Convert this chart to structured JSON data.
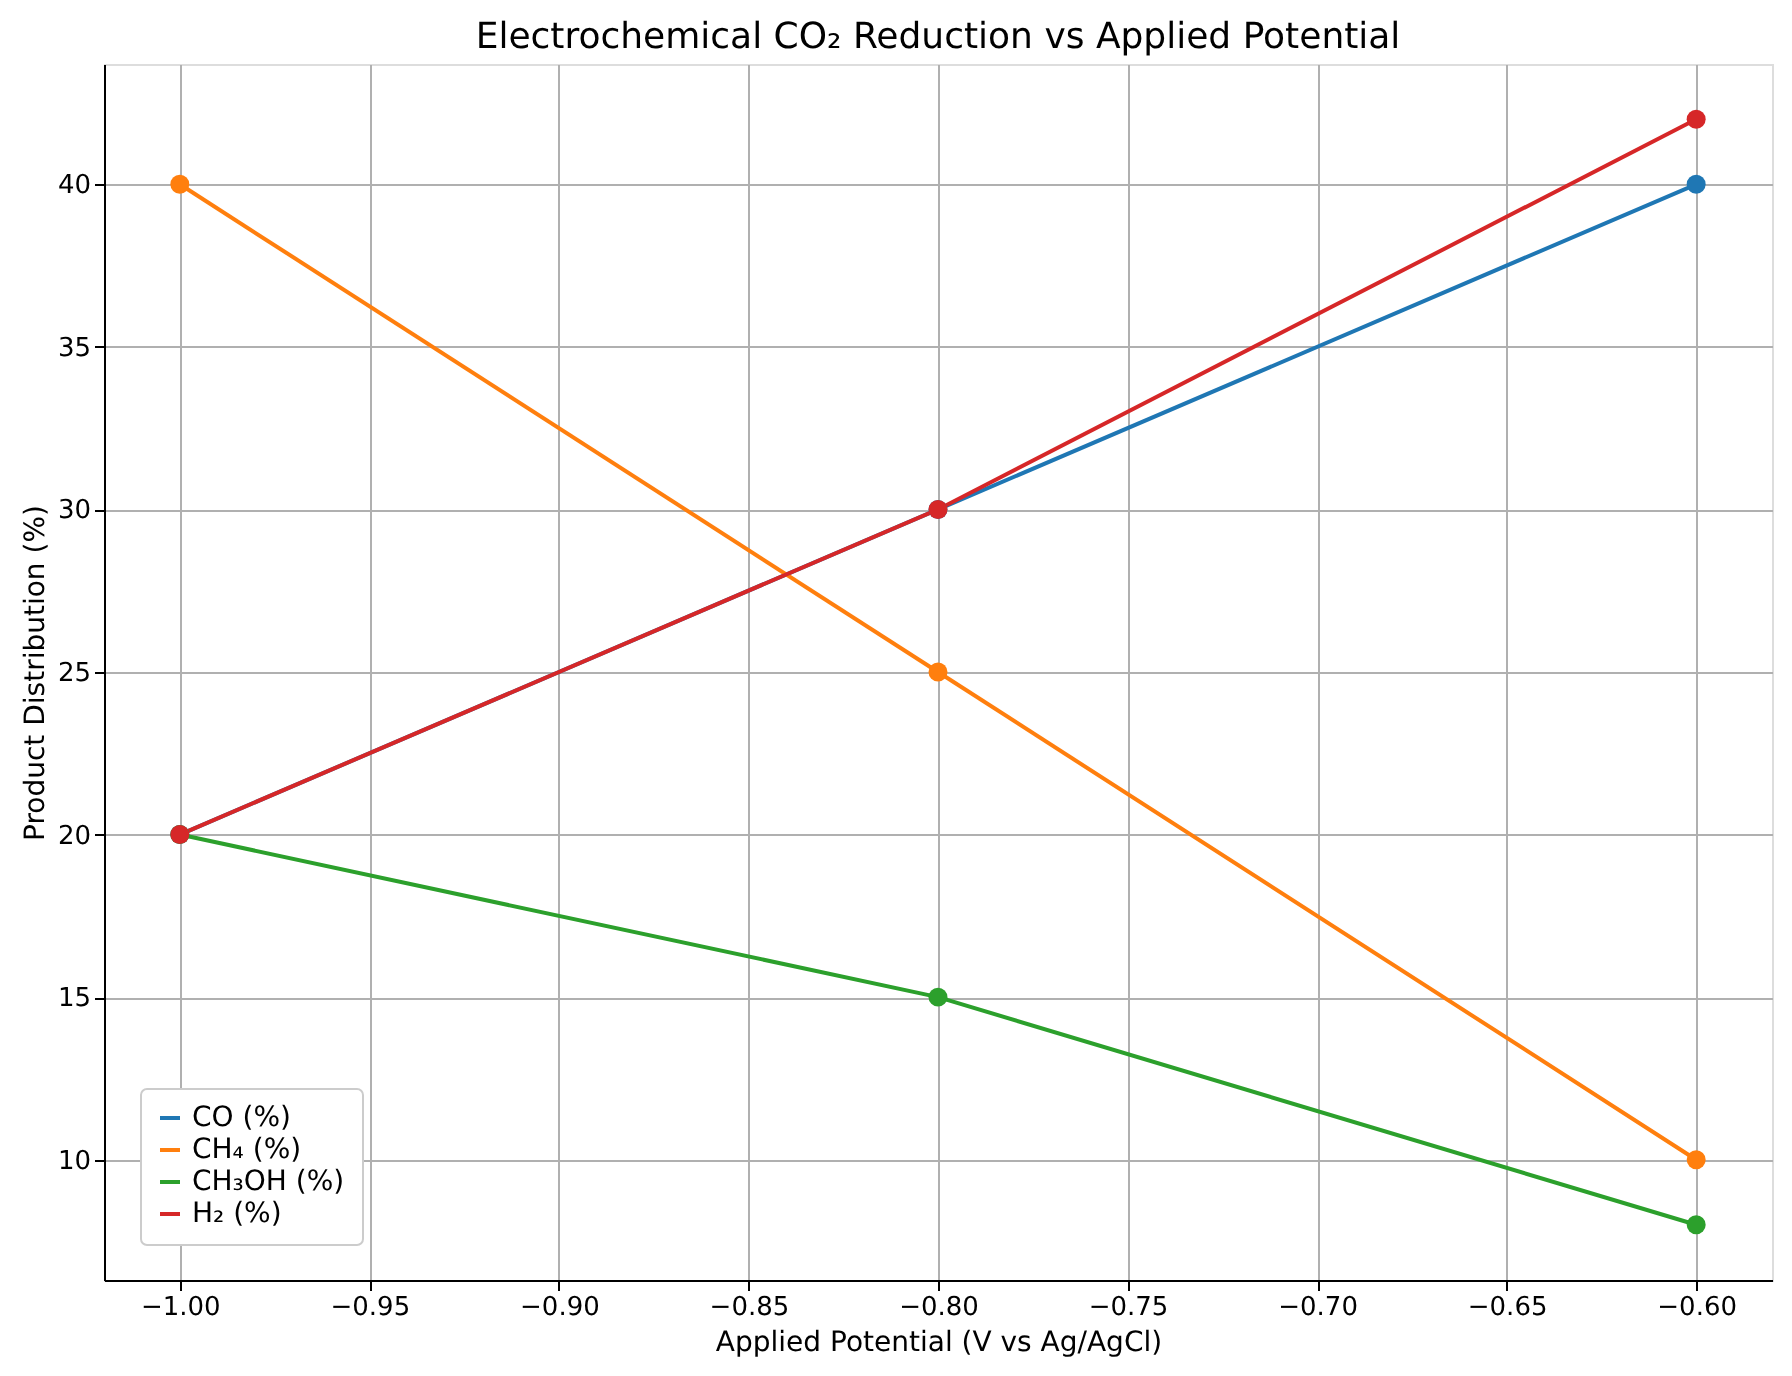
{
  "chart_data": {
    "type": "line",
    "title": "Electrochemical CO₂ Reduction vs Applied Potential",
    "xlabel": "Applied Potential (V vs Ag/AgCl)",
    "ylabel": "Product Distribution (%)",
    "x": [
      -1.0,
      -0.8,
      -0.6
    ],
    "series": [
      {
        "name": "CO (%)",
        "color": "#1f77b4",
        "values": [
          20,
          30,
          40
        ]
      },
      {
        "name": "CH₄ (%)",
        "color": "#ff7f0e",
        "values": [
          40,
          25,
          10
        ]
      },
      {
        "name": "CH₃OH (%)",
        "color": "#2ca02c",
        "values": [
          20,
          15,
          8
        ]
      },
      {
        "name": "H₂ (%)",
        "color": "#d62728",
        "values": [
          20,
          30,
          42
        ]
      }
    ],
    "xlim": [
      -1.02,
      -0.58
    ],
    "xticks": [
      {
        "value": -1.0,
        "label": "−1.00"
      },
      {
        "value": -0.95,
        "label": "−0.95"
      },
      {
        "value": -0.9,
        "label": "−0.90"
      },
      {
        "value": -0.85,
        "label": "−0.85"
      },
      {
        "value": -0.8,
        "label": "−0.80"
      },
      {
        "value": -0.75,
        "label": "−0.75"
      },
      {
        "value": -0.7,
        "label": "−0.70"
      },
      {
        "value": -0.65,
        "label": "−0.65"
      },
      {
        "value": -0.6,
        "label": "−0.60"
      }
    ],
    "ylim": [
      6.3,
      43.7
    ],
    "yticks": [
      10,
      15,
      20,
      25,
      30,
      35,
      40
    ],
    "grid": true,
    "legend": "bottom left",
    "marker": "circle",
    "line_style": "solid"
  }
}
